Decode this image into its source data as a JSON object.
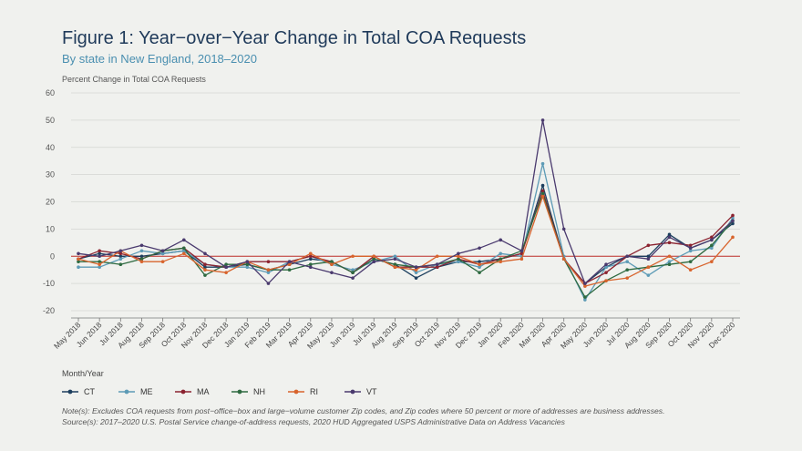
{
  "title": "Figure 1: Year−over−Year Change in Total COA Requests",
  "subtitle": "By state in New England, 2018–2020",
  "notes": [
    "Note(s): Excludes COA requests from post−office−box and large−volume customer Zip codes, and Zip codes where 50 percent or more of addresses are business addresses.",
    "Source(s): 2017–2020 U.S. Postal Service change-of-address requests, 2020 HUD Aggregated USPS Administrative Data on Address Vacancies"
  ],
  "chart_data": {
    "type": "line",
    "title": "Figure 1: Year−over−Year Change in Total COA Requests",
    "subtitle": "By state in New England, 2018–2020",
    "ylabel": "Percent Change in Total COA Requests",
    "xlabel": "Month/Year",
    "ylim": [
      -20,
      60
    ],
    "yticks": [
      -20,
      -10,
      0,
      10,
      20,
      30,
      40,
      50,
      60
    ],
    "grid": true,
    "legend_position": "bottom-left",
    "zero_line_color": "#c0302b",
    "categories": [
      "May 2018",
      "Jun 2018",
      "Jul 2018",
      "Aug 2018",
      "Sep 2018",
      "Oct 2018",
      "Nov 2018",
      "Dec 2018",
      "Jan 2019",
      "Feb 2019",
      "Mar 2019",
      "Apr 2019",
      "May 2019",
      "Jun 2019",
      "Jul 2019",
      "Aug 2019",
      "Sep 2019",
      "Oct 2019",
      "Nov 2019",
      "Dec 2019",
      "Jan 2020",
      "Feb 2020",
      "Mar 2020",
      "Apr 2020",
      "May 2020",
      "Jun 2020",
      "Jul 2020",
      "Aug 2020",
      "Sep 2020",
      "Oct 2020",
      "Nov 2020",
      "Dec 2020"
    ],
    "series": [
      {
        "name": "CT",
        "color": "#1d3f5e",
        "values": [
          -1,
          1,
          0,
          0,
          1,
          2,
          -4,
          -4,
          -3,
          -5,
          -3,
          -1,
          -2,
          -6,
          -1,
          -3,
          -8,
          -4,
          -2,
          -2,
          -1,
          1,
          26,
          -1,
          -10,
          -4,
          0,
          0,
          8,
          3,
          6,
          12
        ]
      },
      {
        "name": "ME",
        "color": "#5d9bb6",
        "values": [
          -4,
          -4,
          -1,
          2,
          1,
          2,
          -3,
          -4,
          -4,
          -6,
          -2,
          0,
          -3,
          -5,
          -2,
          0,
          -6,
          -3,
          -2,
          -4,
          1,
          0,
          34,
          0,
          -16,
          -4,
          -2,
          -7,
          -2,
          2,
          3,
          14
        ]
      },
      {
        "name": "MA",
        "color": "#8b2330",
        "values": [
          -1,
          2,
          1,
          -1,
          2,
          3,
          -3,
          -4,
          -2,
          -2,
          -2,
          0,
          -2,
          -6,
          0,
          -4,
          -4,
          -4,
          -1,
          -3,
          -1,
          1,
          24,
          -1,
          -10,
          -6,
          0,
          4,
          5,
          4,
          7,
          15
        ]
      },
      {
        "name": "NH",
        "color": "#2e6a40",
        "values": [
          -2,
          -2,
          -3,
          -1,
          2,
          3,
          -7,
          -3,
          -3,
          -5,
          -5,
          -3,
          -2,
          -6,
          -1,
          -3,
          -4,
          -3,
          -1,
          -6,
          -1,
          2,
          23,
          -1,
          -15,
          -9,
          -5,
          -4,
          -3,
          -2,
          4,
          13
        ]
      },
      {
        "name": "RI",
        "color": "#d8642d",
        "values": [
          -1,
          -3,
          2,
          -2,
          -2,
          1,
          -5,
          -6,
          -2,
          -5,
          -3,
          1,
          -3,
          0,
          0,
          -4,
          -5,
          0,
          0,
          -3,
          -2,
          -1,
          22,
          -1,
          -11,
          -9,
          -8,
          -4,
          0,
          -5,
          -2,
          7
        ]
      },
      {
        "name": "VT",
        "color": "#4a3a6e",
        "values": [
          1,
          0,
          2,
          4,
          2,
          6,
          1,
          -4,
          -2,
          -10,
          -2,
          -4,
          -6,
          -8,
          -2,
          -1,
          -4,
          -3,
          1,
          3,
          6,
          2,
          50,
          10,
          -10,
          -3,
          0,
          -1,
          7,
          3,
          6,
          13
        ]
      }
    ]
  }
}
